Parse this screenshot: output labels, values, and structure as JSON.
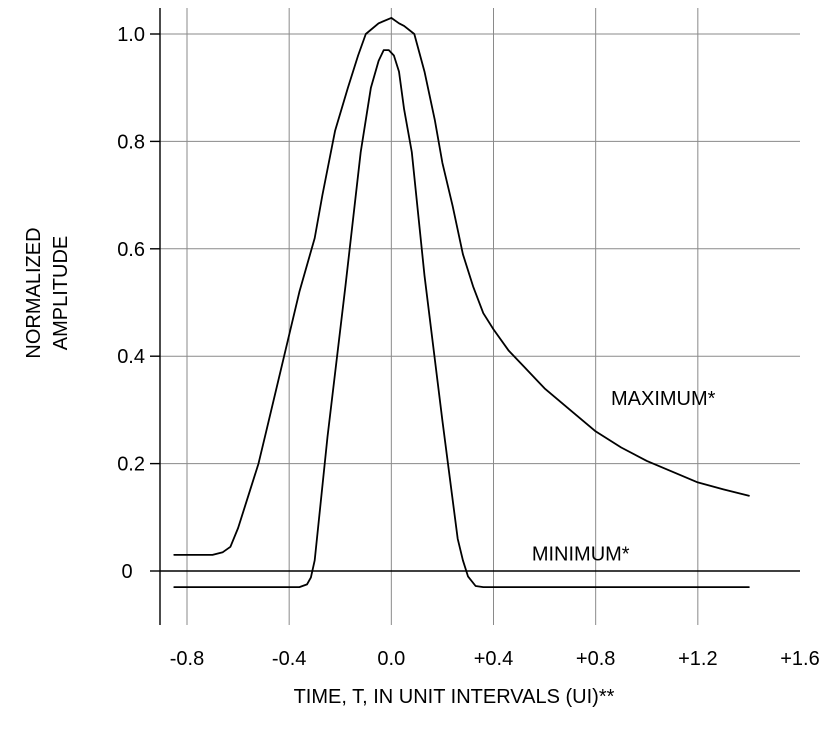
{
  "chart_data": {
    "type": "line",
    "title": "",
    "xlabel": "TIME, T, IN UNIT INTERVALS (UI)**",
    "ylabel_lines": [
      "NORMALIZED",
      "AMPLITUDE"
    ],
    "xlim": [
      -0.9,
      1.6
    ],
    "ylim": [
      -0.1,
      1.05
    ],
    "x_ticks": [
      -0.8,
      -0.4,
      0.0,
      0.4,
      0.8,
      1.2,
      1.6
    ],
    "x_tick_labels": [
      "-0.8",
      "-0.4",
      "0.0",
      "+0.4",
      "+0.8",
      "+1.2",
      "+1.6"
    ],
    "y_ticks": [
      0,
      0.2,
      0.4,
      0.6,
      0.8,
      1.0
    ],
    "y_tick_labels": [
      "0",
      "0.2",
      "0.4",
      "0.6",
      "0.8",
      "1.0"
    ],
    "grid": true,
    "series": [
      {
        "name": "MAXIMUM*",
        "label_at": [
          0.86,
          0.3
        ],
        "x": [
          -0.85,
          -0.7,
          -0.66,
          -0.63,
          -0.6,
          -0.56,
          -0.52,
          -0.49,
          -0.42,
          -0.36,
          -0.3,
          -0.27,
          -0.22,
          -0.17,
          -0.13,
          -0.1,
          -0.05,
          0.0,
          0.03,
          0.05,
          0.09,
          0.13,
          0.17,
          0.2,
          0.24,
          0.28,
          0.32,
          0.36,
          0.4,
          0.46,
          0.52,
          0.6,
          0.7,
          0.8,
          0.9,
          1.0,
          1.1,
          1.2,
          1.3,
          1.4
        ],
        "y": [
          0.03,
          0.03,
          0.035,
          0.045,
          0.08,
          0.14,
          0.2,
          0.26,
          0.4,
          0.52,
          0.62,
          0.7,
          0.82,
          0.9,
          0.96,
          1.0,
          1.02,
          1.03,
          1.02,
          1.015,
          1.0,
          0.93,
          0.84,
          0.76,
          0.68,
          0.59,
          0.53,
          0.48,
          0.45,
          0.41,
          0.38,
          0.34,
          0.3,
          0.26,
          0.23,
          0.205,
          0.185,
          0.165,
          0.152,
          0.14
        ]
      },
      {
        "name": "MINIMUM*",
        "label_at": [
          0.55,
          0.01
        ],
        "x": [
          -0.85,
          -0.36,
          -0.33,
          -0.315,
          -0.3,
          -0.25,
          -0.18,
          -0.12,
          -0.08,
          -0.05,
          -0.03,
          -0.01,
          0.01,
          0.03,
          0.05,
          0.08,
          0.13,
          0.2,
          0.26,
          0.28,
          0.3,
          0.33,
          0.36,
          1.4
        ],
        "y": [
          -0.03,
          -0.03,
          -0.025,
          -0.012,
          0.02,
          0.25,
          0.53,
          0.78,
          0.9,
          0.95,
          0.97,
          0.97,
          0.96,
          0.93,
          0.86,
          0.78,
          0.55,
          0.28,
          0.06,
          0.02,
          -0.01,
          -0.028,
          -0.03,
          -0.03
        ]
      }
    ]
  }
}
